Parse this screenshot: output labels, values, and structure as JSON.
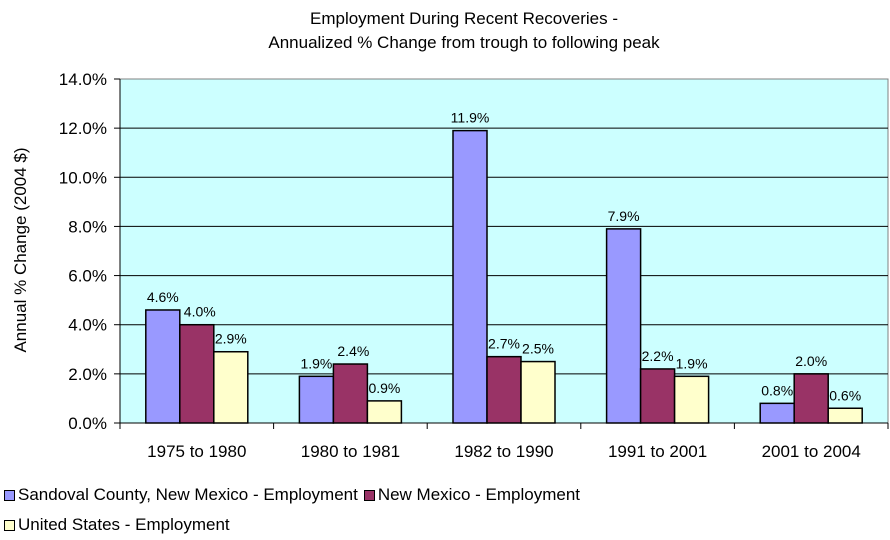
{
  "chart_data": {
    "type": "bar",
    "title_lines": [
      "Employment During Recent Recoveries -",
      "Annualized % Change from trough to following peak"
    ],
    "ylabel": "Annual % Change (2004 $)",
    "xlabel": "",
    "ylim": [
      0,
      14
    ],
    "yticks": [
      "0.0%",
      "2.0%",
      "4.0%",
      "6.0%",
      "8.0%",
      "10.0%",
      "12.0%",
      "14.0%"
    ],
    "categories": [
      "1975 to 1980",
      "1980 to 1981",
      "1982 to 1990",
      "1991 to 2001",
      "2001 to 2004"
    ],
    "series": [
      {
        "name": "Sandoval County, New Mexico - Employment",
        "color": "#9999ff",
        "values": [
          4.6,
          1.9,
          11.9,
          7.9,
          0.8
        ],
        "labels": [
          "4.6%",
          "1.9%",
          "11.9%",
          "7.9%",
          "0.8%"
        ]
      },
      {
        "name": "New Mexico - Employment",
        "color": "#993366",
        "values": [
          4.0,
          2.4,
          2.7,
          2.2,
          2.0
        ],
        "labels": [
          "4.0%",
          "2.4%",
          "2.7%",
          "2.2%",
          "2.0%"
        ]
      },
      {
        "name": "United States - Employment",
        "color": "#ffffcc",
        "values": [
          2.9,
          0.9,
          2.5,
          1.9,
          0.6
        ],
        "labels": [
          "2.9%",
          "0.9%",
          "2.5%",
          "1.9%",
          "0.6%"
        ]
      }
    ],
    "plot_background": "#ccffff",
    "grid": true,
    "legend_position": "bottom"
  }
}
